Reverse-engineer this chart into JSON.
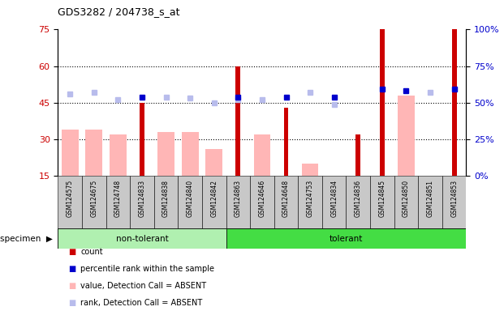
{
  "title": "GDS3282 / 204738_s_at",
  "samples": [
    "GSM124575",
    "GSM124675",
    "GSM124748",
    "GSM124833",
    "GSM124838",
    "GSM124840",
    "GSM124842",
    "GSM124863",
    "GSM124646",
    "GSM124648",
    "GSM124753",
    "GSM124834",
    "GSM124836",
    "GSM124845",
    "GSM124850",
    "GSM124851",
    "GSM124853"
  ],
  "non_tolerant_count": 7,
  "tolerant_count": 10,
  "red_bars": [
    null,
    null,
    null,
    45,
    null,
    null,
    null,
    60,
    null,
    43,
    null,
    null,
    32,
    75,
    null,
    null,
    75
  ],
  "pink_bars": [
    34,
    34,
    32,
    null,
    33,
    33,
    26,
    null,
    32,
    null,
    20,
    null,
    null,
    null,
    48,
    null,
    null
  ],
  "blue_squares": [
    null,
    null,
    null,
    54,
    null,
    null,
    null,
    54,
    null,
    54,
    null,
    54,
    null,
    59,
    58,
    null,
    59
  ],
  "lavender_squares": [
    56,
    57,
    52,
    null,
    54,
    53,
    50,
    52,
    52,
    null,
    57,
    49,
    null,
    null,
    null,
    57,
    null
  ],
  "ylim_left": [
    15,
    75
  ],
  "ylim_right": [
    0,
    100
  ],
  "yticks_left": [
    15,
    30,
    45,
    60,
    75
  ],
  "yticks_right": [
    0,
    25,
    50,
    75,
    100
  ],
  "ytick_right_labels": [
    "0%",
    "25%",
    "50%",
    "75%",
    "100%"
  ],
  "grid_values": [
    30,
    45,
    60
  ],
  "non_tolerant_color": "#b0f0b0",
  "tolerant_color": "#44dd44",
  "red_color": "#cc0000",
  "pink_color": "#ffb6b6",
  "blue_color": "#0000cc",
  "lavender_color": "#b8bcec",
  "label_bg_color": "#c8c8c8",
  "fig_width": 6.21,
  "fig_height": 3.84,
  "pink_bar_width": 0.7,
  "red_bar_width": 0.2,
  "square_size": 4,
  "legend_items": [
    {
      "color": "#cc0000",
      "label": "count"
    },
    {
      "color": "#0000cc",
      "label": "percentile rank within the sample"
    },
    {
      "color": "#ffb6b6",
      "label": "value, Detection Call = ABSENT"
    },
    {
      "color": "#b8bcec",
      "label": "rank, Detection Call = ABSENT"
    }
  ]
}
